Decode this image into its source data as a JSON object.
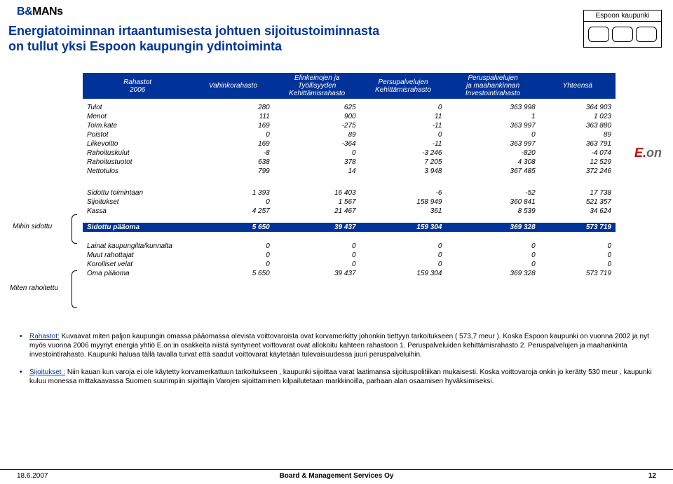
{
  "logo": {
    "b": "B",
    "and": "&",
    "mans": "MANs"
  },
  "title_line1": "Energiatoiminnan irtaantumisesta johtuen sijoitustoiminnasta",
  "title_line2": "on tullut yksi Espoon kaupungin ydintoiminta",
  "badge_title": "Espoon kaupunki",
  "eon": {
    "e": "E.",
    "on": "on"
  },
  "headers": {
    "rowhead": [
      "Rahastot",
      "2006"
    ],
    "c1": "Vahinkorahasto",
    "c2": [
      "Elinkeinojen ja",
      "Työllisyyden",
      "Kehittämisrahasto"
    ],
    "c3": [
      "Persupalvelujen",
      "Kehittämisrahasto"
    ],
    "c4": [
      "Peruspalvelujen",
      "ja maahankinnan",
      "Investointirahasto"
    ],
    "c5": "Yhteensä"
  },
  "section1": {
    "rows": [
      {
        "label": "Tulot",
        "v": [
          "280",
          "625",
          "0",
          "363 998",
          "364 903"
        ]
      },
      {
        "label": "Menot",
        "v": [
          "111",
          "900",
          "11",
          "1",
          "1 023"
        ]
      },
      {
        "label": "Toim.kate",
        "v": [
          "169",
          "-275",
          "-11",
          "363 997",
          "363 880"
        ]
      },
      {
        "label": "Poistot",
        "v": [
          "0",
          "89",
          "0",
          "0",
          "89"
        ]
      },
      {
        "label": "Liikevoitto",
        "v": [
          "169",
          "-364",
          "-11",
          "363 997",
          "363 791"
        ]
      },
      {
        "label": "Rahoituskulut",
        "v": [
          "-8",
          "0",
          "-3 246",
          "-820",
          "-4 074"
        ]
      },
      {
        "label": "Rahoitustuotot",
        "v": [
          "638",
          "378",
          "7 205",
          "4 308",
          "12 529"
        ]
      },
      {
        "label": "Nettotulos",
        "v": [
          "799",
          "14",
          "3 948",
          "367 485",
          "372 246"
        ]
      }
    ]
  },
  "section2": {
    "side_label": "Mihin sidottu",
    "rows": [
      {
        "label": "Sidottu toimintaan",
        "v": [
          "1 393",
          "16 403",
          "-6",
          "-52",
          "17 738"
        ]
      },
      {
        "label": "Sijoitukset",
        "v": [
          "0",
          "1 567",
          "158 949",
          "360 841",
          "521 357"
        ]
      },
      {
        "label": "Kassa",
        "v": [
          "4 257",
          "21 467",
          "361",
          "8 539",
          "34 624"
        ]
      }
    ],
    "total": {
      "label": "Sidottu pääoma",
      "v": [
        "5 650",
        "39 437",
        "159 304",
        "369 328",
        "573 719"
      ]
    }
  },
  "section3": {
    "side_label": "Miten rahoitettu",
    "rows": [
      {
        "label": "Lainat kaupungilta/kunnalta",
        "v": [
          "0",
          "0",
          "0",
          "0",
          "0"
        ]
      },
      {
        "label": "Muut rahottajat",
        "v": [
          "0",
          "0",
          "0",
          "0",
          "0"
        ]
      },
      {
        "label": "Korolliset velat",
        "v": [
          "0",
          "0",
          "0",
          "0",
          "0"
        ]
      },
      {
        "label": "Oma pääoma",
        "v": [
          "5 650",
          "39 437",
          "159 304",
          "369 328",
          "573 719"
        ]
      }
    ]
  },
  "bullet1": {
    "lead": "Rahastot:",
    "text": " Kuvaavat miten paljon kaupungin omassa pääomassa olevista voittovaroista ovat korvamerkitty johonkin tiettyyn tarkoitukseen ( 573,7 meur ). Koska Espoon kaupunki on vuonna 2002 ja nyt myös vuonna 2006 myynyt energia yhtiö E.on:in osakkeita niistä syntyneet voittovarat ovat allokoitu kahteen rahastoon 1. Peruspalveluiden kehittämisrahasto 2. Peruspalvelujen ja maahankinta investointirahasto. Kaupunki haluaa tällä tavalla turvat että saadut voittovarat käytetään tulevaisuudessa juuri peruspalveluihin."
  },
  "bullet2": {
    "lead": "Sijoitukset :",
    "text": " Niin kauan kun varoja ei ole käytetty korvamerkattuun tarkoitukseen , kaupunki sijoittaa varat laatimansa sijoituspolitiikan mukaisesti. Koska voittovaroja onkin jo kerätty 530 meur , kaupunki kuluu monessa mittakaavassa Suomen suurimpiin sijoittajin Varojen sijoittaminen kilpailutetaan markkinoilla, parhaan alan osaamisen hyväksimiseksi."
  },
  "footer": {
    "date": "18.6.2007",
    "center": "Board & Management Services Oy",
    "page": "12"
  },
  "style": {
    "header_bg": "#003399",
    "header_fg": "#ffffff",
    "title_color": "#003399",
    "col_widths": [
      "150px",
      "112px",
      "118px",
      "118px",
      "128px",
      "104px"
    ]
  }
}
